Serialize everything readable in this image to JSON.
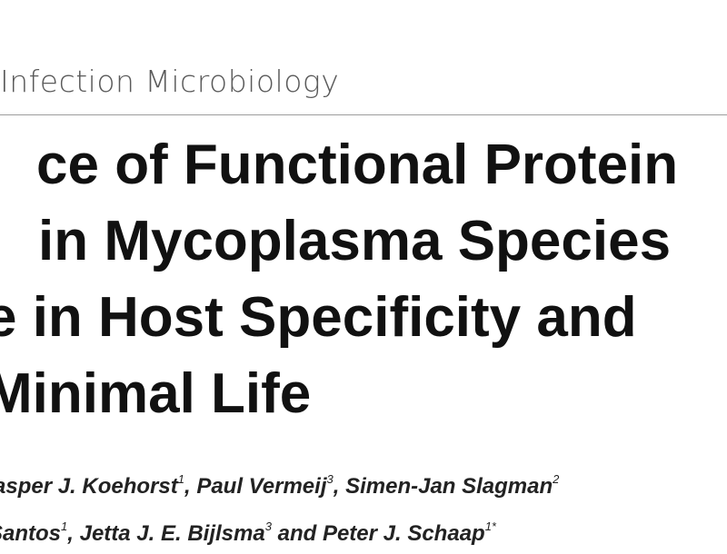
{
  "journal": "Infection Microbiology",
  "title_lines": [
    "ce of Functional Protein",
    "in Mycoplasma Species",
    "e in Host Specificity and",
    "Minimal Life"
  ],
  "authors_lines": [
    [
      {
        "name": "asper J. Koehorst",
        "sup": "1",
        "sep": ", "
      },
      {
        "name": "Paul Vermeij",
        "sup": "3",
        "sep": ", "
      },
      {
        "name": "Simen-Jan Slagman",
        "sup": "2",
        "sep": ""
      }
    ],
    [
      {
        "name": "Santos",
        "sup": "1",
        "sep": ", "
      },
      {
        "name": "Jetta J. E. Bijlsma",
        "sup": "3",
        "sep": " and "
      },
      {
        "name": "Peter J. Schaap",
        "sup": "1*",
        "sep": ""
      }
    ]
  ]
}
